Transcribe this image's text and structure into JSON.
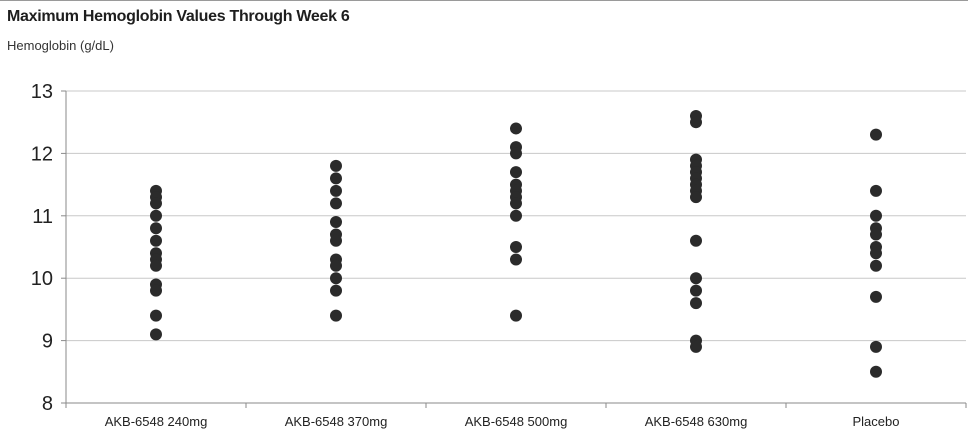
{
  "chart_data": {
    "type": "scatter",
    "title": "Maximum Hemoglobin Values Through Week 6",
    "ylabel": "Hemoglobin (g/dL)",
    "xlabel": "",
    "ylim": [
      8,
      13
    ],
    "yticks": [
      8,
      9,
      10,
      11,
      12,
      13
    ],
    "grid": true,
    "categories": [
      "AKB-6548 240mg",
      "AKB-6548 370mg",
      "AKB-6548 500mg",
      "AKB-6548 630mg",
      "Placebo"
    ],
    "series": [
      {
        "values": [
          11.4,
          11.3,
          11.2,
          11.0,
          10.8,
          10.6,
          10.4,
          10.3,
          10.2,
          9.9,
          9.8,
          9.4,
          9.1
        ]
      },
      {
        "values": [
          11.8,
          11.6,
          11.4,
          11.2,
          10.9,
          10.7,
          10.6,
          10.3,
          10.2,
          10.0,
          9.8,
          9.4
        ]
      },
      {
        "values": [
          12.4,
          12.1,
          12.0,
          11.7,
          11.5,
          11.4,
          11.3,
          11.2,
          11.0,
          10.5,
          10.3,
          9.4
        ]
      },
      {
        "values": [
          12.6,
          12.5,
          11.9,
          11.8,
          11.7,
          11.6,
          11.5,
          11.4,
          11.3,
          10.6,
          10.0,
          9.8,
          9.6,
          9.0,
          8.9
        ]
      },
      {
        "values": [
          12.3,
          11.4,
          11.0,
          10.8,
          10.7,
          10.5,
          10.4,
          10.2,
          9.7,
          8.9,
          8.5
        ]
      }
    ],
    "colors": {
      "dot": "#2b2b2b",
      "grid": "#c8c8c8",
      "axis": "#8a8a8a"
    }
  }
}
